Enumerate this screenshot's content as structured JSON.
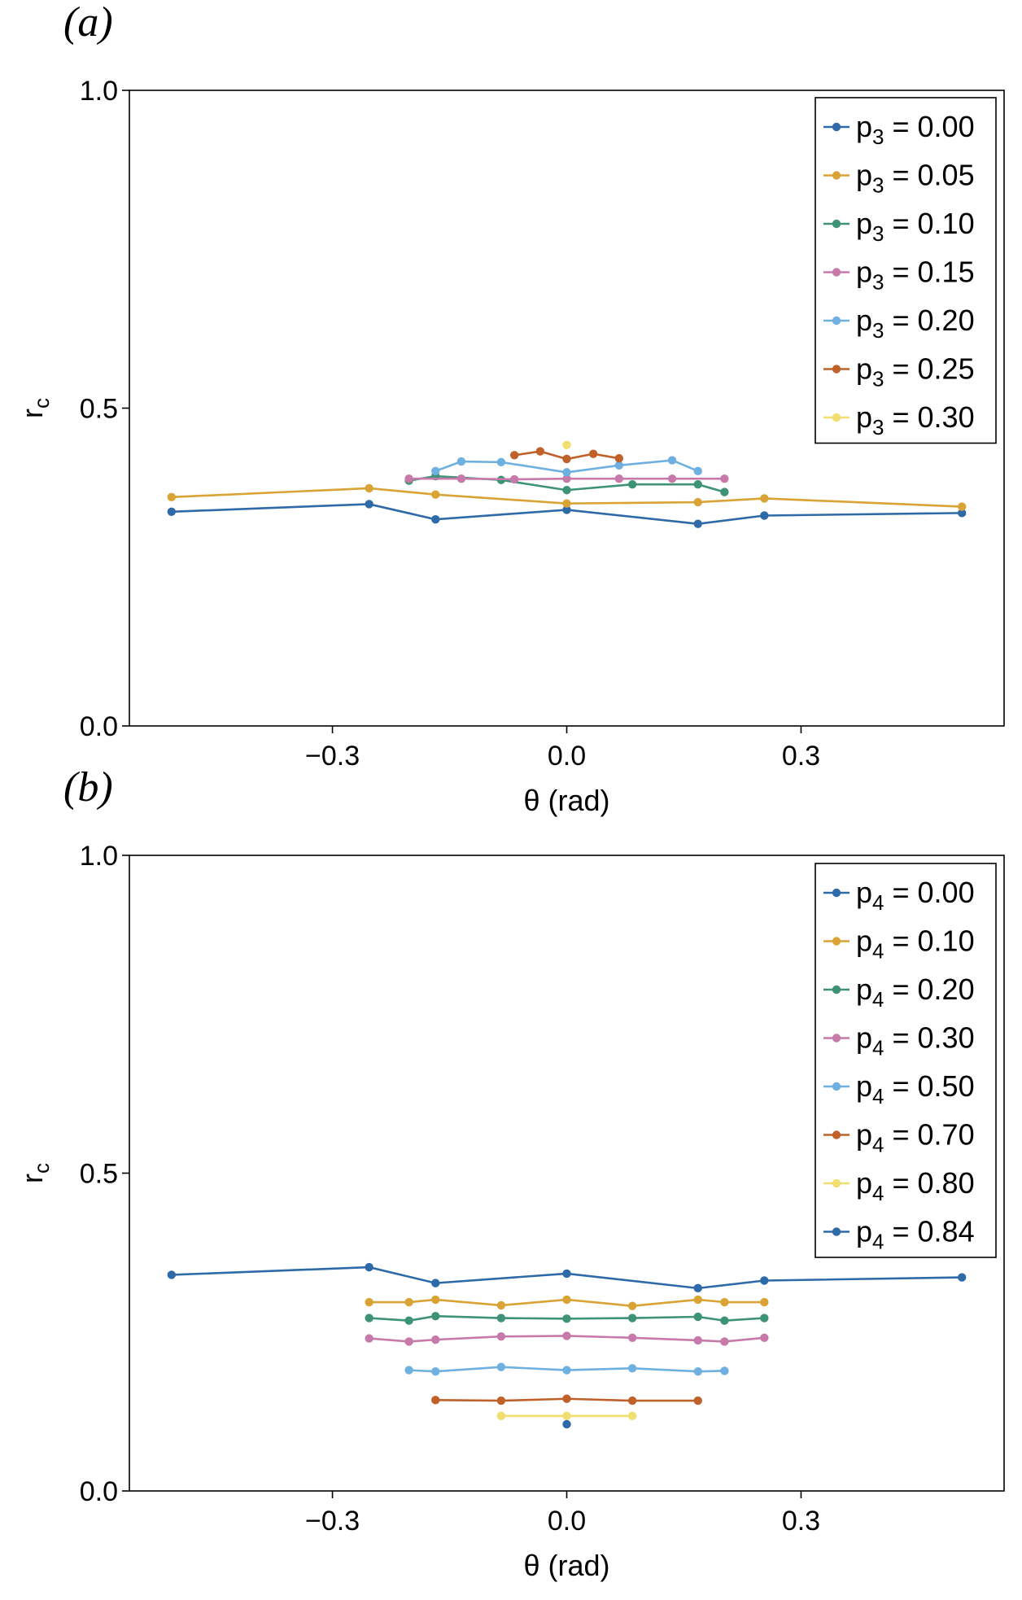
{
  "chart_data": [
    {
      "panel_label": "(a)",
      "type": "line",
      "xlabel": "θ (rad)",
      "ylabel": "r",
      "ylabel_sub": "c",
      "xlim": [
        -0.56,
        0.56
      ],
      "ylim": [
        0.0,
        1.0
      ],
      "xticks": [
        {
          "value": -0.3,
          "label": "−0.3"
        },
        {
          "value": 0.0,
          "label": "0.0"
        },
        {
          "value": 0.3,
          "label": "0.3"
        }
      ],
      "yticks": [
        {
          "value": 0.0,
          "label": "0.0"
        },
        {
          "value": 0.5,
          "label": "0.5"
        },
        {
          "value": 1.0,
          "label": "1.0"
        }
      ],
      "legend_position": "top-right",
      "series": [
        {
          "name": "p3 = 0.00",
          "legend_main": "p",
          "legend_sub": "3",
          "legend_value": " = 0.00",
          "color": "#2e6aa8",
          "x": [
            -0.506,
            -0.253,
            -0.168,
            0.0,
            0.168,
            0.253,
            0.506
          ],
          "y": [
            0.337,
            0.349,
            0.325,
            0.34,
            0.318,
            0.331,
            0.335
          ]
        },
        {
          "name": "p3 = 0.05",
          "legend_main": "p",
          "legend_sub": "3",
          "legend_value": " = 0.05",
          "color": "#daa336",
          "x": [
            -0.506,
            -0.253,
            -0.168,
            0.0,
            0.168,
            0.253,
            0.506
          ],
          "y": [
            0.36,
            0.374,
            0.364,
            0.35,
            0.352,
            0.358,
            0.345
          ]
        },
        {
          "name": "p3 = 0.10",
          "legend_main": "p",
          "legend_sub": "3",
          "legend_value": " = 0.10",
          "color": "#3e9276",
          "x": [
            -0.202,
            -0.168,
            -0.084,
            0.0,
            0.084,
            0.168,
            0.202
          ],
          "y": [
            0.386,
            0.393,
            0.387,
            0.371,
            0.38,
            0.38,
            0.368
          ]
        },
        {
          "name": "p3 = 0.15",
          "legend_main": "p",
          "legend_sub": "3",
          "legend_value": " = 0.15",
          "color": "#c77aaa",
          "x": [
            -0.202,
            -0.135,
            -0.067,
            0.0,
            0.067,
            0.135,
            0.202
          ],
          "y": [
            0.389,
            0.389,
            0.388,
            0.389,
            0.389,
            0.389,
            0.389
          ]
        },
        {
          "name": "p3 = 0.20",
          "legend_main": "p",
          "legend_sub": "3",
          "legend_value": " = 0.20",
          "color": "#6eb0e0",
          "x": [
            -0.168,
            -0.135,
            -0.084,
            0.0,
            0.067,
            0.135,
            0.168
          ],
          "y": [
            0.401,
            0.416,
            0.415,
            0.399,
            0.41,
            0.418,
            0.401
          ]
        },
        {
          "name": "p3 = 0.25",
          "legend_main": "p",
          "legend_sub": "3",
          "legend_value": " = 0.25",
          "color": "#c0612a",
          "x": [
            -0.067,
            -0.034,
            0.0,
            0.034,
            0.067
          ],
          "y": [
            0.426,
            0.432,
            0.42,
            0.428,
            0.421
          ]
        },
        {
          "name": "p3 = 0.30",
          "legend_main": "p",
          "legend_sub": "3",
          "legend_value": " = 0.30",
          "color": "#f0de6e",
          "x": [
            0.0
          ],
          "y": [
            0.442
          ]
        }
      ]
    },
    {
      "panel_label": "(b)",
      "type": "line",
      "xlabel": "θ (rad)",
      "ylabel": "r",
      "ylabel_sub": "c",
      "xlim": [
        -0.56,
        0.56
      ],
      "ylim": [
        0.0,
        1.0
      ],
      "xticks": [
        {
          "value": -0.3,
          "label": "−0.3"
        },
        {
          "value": 0.0,
          "label": "0.0"
        },
        {
          "value": 0.3,
          "label": "0.3"
        }
      ],
      "yticks": [
        {
          "value": 0.0,
          "label": "0.0"
        },
        {
          "value": 0.5,
          "label": "0.5"
        },
        {
          "value": 1.0,
          "label": "1.0"
        }
      ],
      "legend_position": "top-right",
      "series": [
        {
          "name": "p4 = 0.00",
          "legend_main": "p",
          "legend_sub": "4",
          "legend_value": " = 0.00",
          "color": "#2e6aa8",
          "x": [
            -0.506,
            -0.253,
            -0.168,
            0.0,
            0.168,
            0.253,
            0.506
          ],
          "y": [
            0.34,
            0.352,
            0.327,
            0.342,
            0.319,
            0.331,
            0.336
          ]
        },
        {
          "name": "p4 = 0.10",
          "legend_main": "p",
          "legend_sub": "4",
          "legend_value": " = 0.10",
          "color": "#daa336",
          "x": [
            -0.253,
            -0.202,
            -0.168,
            -0.084,
            0.0,
            0.084,
            0.168,
            0.202,
            0.253
          ],
          "y": [
            0.297,
            0.297,
            0.301,
            0.292,
            0.301,
            0.291,
            0.301,
            0.297,
            0.297
          ]
        },
        {
          "name": "p4 = 0.20",
          "legend_main": "p",
          "legend_sub": "4",
          "legend_value": " = 0.20",
          "color": "#3e9276",
          "x": [
            -0.253,
            -0.202,
            -0.168,
            -0.084,
            0.0,
            0.084,
            0.168,
            0.202,
            0.253
          ],
          "y": [
            0.272,
            0.268,
            0.275,
            0.272,
            0.271,
            0.272,
            0.274,
            0.268,
            0.272
          ]
        },
        {
          "name": "p4 = 0.30",
          "legend_main": "p",
          "legend_sub": "4",
          "legend_value": " = 0.30",
          "color": "#c77aaa",
          "x": [
            -0.253,
            -0.202,
            -0.168,
            -0.084,
            0.0,
            0.084,
            0.168,
            0.202,
            0.253
          ],
          "y": [
            0.24,
            0.235,
            0.238,
            0.243,
            0.244,
            0.241,
            0.237,
            0.235,
            0.241
          ]
        },
        {
          "name": "p4 = 0.50",
          "legend_main": "p",
          "legend_sub": "4",
          "legend_value": " = 0.50",
          "color": "#6eb0e0",
          "x": [
            -0.202,
            -0.168,
            -0.084,
            0.0,
            0.084,
            0.168,
            0.202
          ],
          "y": [
            0.19,
            0.188,
            0.195,
            0.19,
            0.193,
            0.188,
            0.189
          ]
        },
        {
          "name": "p4 = 0.70",
          "legend_main": "p",
          "legend_sub": "4",
          "legend_value": " = 0.70",
          "color": "#c0612a",
          "x": [
            -0.168,
            -0.084,
            0.0,
            0.084,
            0.168
          ],
          "y": [
            0.143,
            0.142,
            0.145,
            0.142,
            0.142
          ]
        },
        {
          "name": "p4 = 0.80",
          "legend_main": "p",
          "legend_sub": "4",
          "legend_value": " = 0.80",
          "color": "#f0de6e",
          "x": [
            -0.084,
            0.0,
            0.084
          ],
          "y": [
            0.118,
            0.118,
            0.118
          ]
        },
        {
          "name": "p4 = 0.84",
          "legend_main": "p",
          "legend_sub": "4",
          "legend_value": " = 0.84",
          "color": "#2e6aa8",
          "x": [
            0.0
          ],
          "y": [
            0.105
          ]
        }
      ]
    }
  ]
}
